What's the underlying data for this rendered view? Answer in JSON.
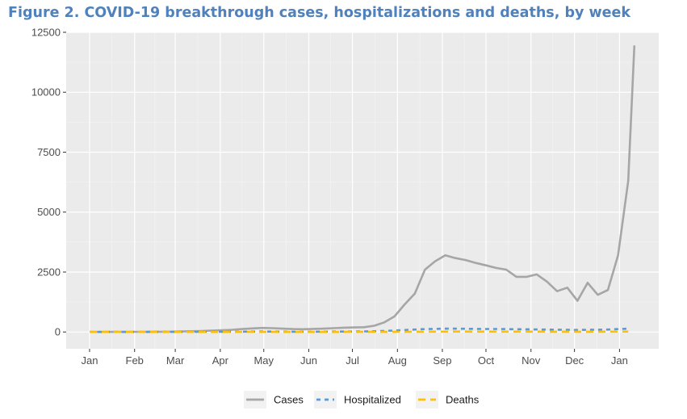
{
  "figure": {
    "title": "Figure 2. COVID-19 breakthrough cases, hospitalizations and deaths, by week"
  },
  "chart_data": {
    "type": "line",
    "title": "Figure 2. COVID-19 breakthrough cases, hospitalizations and deaths, by week",
    "xlabel": "",
    "ylabel": "",
    "ylim": [
      -700,
      12500
    ],
    "y_ticks": [
      0,
      2500,
      5000,
      7500,
      10000,
      12500
    ],
    "y_tick_labels": [
      "0",
      "2500",
      "5000",
      "7500",
      "10000",
      "12500"
    ],
    "x_ticks": [
      0,
      4.43,
      8.43,
      12.86,
      17.14,
      21.57,
      25.86,
      30.29,
      34.71,
      39.0,
      43.43,
      47.71,
      52.14
    ],
    "x_tick_labels": [
      "Jan",
      "Feb",
      "Mar",
      "Apr",
      "May",
      "Jun",
      "Jul",
      "Aug",
      "Sep",
      "Oct",
      "Nov",
      "Dec",
      "Jan"
    ],
    "xlim": [
      -2.3,
      56.0
    ],
    "grid": true,
    "legend_position": "bottom",
    "x": [
      0,
      1,
      2,
      3,
      4,
      5,
      6,
      7,
      8,
      9,
      10,
      11,
      12,
      13,
      14,
      15,
      16,
      17,
      18,
      19,
      20,
      21,
      22,
      23,
      24,
      25,
      26,
      27,
      28,
      29,
      30,
      31,
      32,
      33,
      34,
      35,
      36,
      37,
      38,
      39,
      40,
      41,
      42,
      43,
      44,
      45,
      46,
      47,
      48,
      49,
      50,
      51,
      52,
      53
    ],
    "series": [
      {
        "name": "Cases",
        "color": "#a6a6a6",
        "style": "solid",
        "values": [
          2,
          3,
          4,
          5,
          6,
          8,
          10,
          12,
          15,
          20,
          30,
          40,
          55,
          70,
          90,
          120,
          150,
          170,
          160,
          140,
          120,
          115,
          130,
          140,
          160,
          180,
          190,
          200,
          260,
          400,
          650,
          1150,
          1600,
          2600,
          2950,
          3200,
          3080,
          3000,
          2880,
          2780,
          2670,
          2600,
          2300,
          2300,
          2400,
          2100,
          1700,
          1850,
          1300,
          2050,
          1550,
          1750,
          3200,
          6300
        ],
        "final_point": [
          53.6,
          11950
        ]
      },
      {
        "name": "Hospitalized",
        "color": "#5b9bd5",
        "style": "dotted",
        "values": [
          1,
          1,
          1,
          2,
          2,
          2,
          3,
          3,
          4,
          5,
          6,
          7,
          8,
          10,
          12,
          15,
          18,
          20,
          18,
          15,
          12,
          11,
          12,
          14,
          16,
          18,
          20,
          25,
          30,
          45,
          60,
          80,
          100,
          120,
          130,
          140,
          140,
          135,
          130,
          125,
          125,
          120,
          115,
          110,
          105,
          100,
          95,
          90,
          85,
          90,
          95,
          100,
          120,
          140
        ]
      },
      {
        "name": "Deaths",
        "color": "#ffc000",
        "style": "dashed",
        "values": [
          0,
          0,
          0,
          0,
          0,
          0,
          1,
          1,
          1,
          1,
          1,
          1,
          2,
          2,
          2,
          3,
          3,
          3,
          3,
          2,
          2,
          2,
          2,
          2,
          2,
          3,
          3,
          3,
          4,
          5,
          6,
          8,
          10,
          12,
          14,
          15,
          16,
          16,
          15,
          15,
          15,
          14,
          14,
          13,
          13,
          12,
          12,
          11,
          11,
          12,
          12,
          13,
          15,
          18
        ]
      }
    ]
  }
}
